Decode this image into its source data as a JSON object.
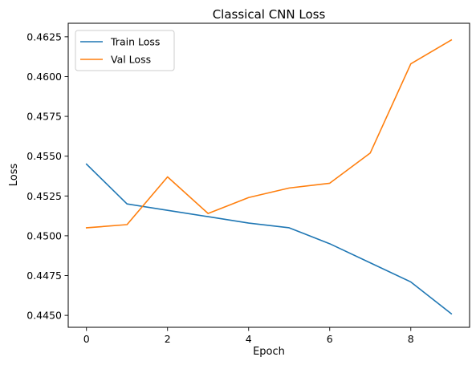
{
  "chart_data": {
    "type": "line",
    "title": "Classical CNN Loss",
    "xlabel": "Epoch",
    "ylabel": "Loss",
    "x": [
      0,
      1,
      2,
      3,
      4,
      5,
      6,
      7,
      8,
      9
    ],
    "xlim": [
      -0.45,
      9.45
    ],
    "ylim": [
      0.44425,
      0.46335
    ],
    "xticks": [
      0,
      2,
      4,
      6,
      8
    ],
    "yticks": [
      0.445,
      0.4475,
      0.45,
      0.4525,
      0.455,
      0.4575,
      0.46,
      0.4625
    ],
    "ytick_labels": [
      "0.4450",
      "0.4475",
      "0.4500",
      "0.4525",
      "0.4550",
      "0.4575",
      "0.4600",
      "0.4625"
    ],
    "grid": false,
    "legend_position": "upper-left",
    "series": [
      {
        "name": "Train Loss",
        "color": "#1f77b4",
        "values": [
          0.4545,
          0.452,
          0.4516,
          0.4512,
          0.4508,
          0.4505,
          0.4495,
          0.4483,
          0.4471,
          0.4451
        ]
      },
      {
        "name": "Val Loss",
        "color": "#ff7f0e",
        "values": [
          0.4505,
          0.4507,
          0.4537,
          0.4514,
          0.4524,
          0.453,
          0.4533,
          0.4552,
          0.4608,
          0.4623
        ]
      }
    ]
  }
}
